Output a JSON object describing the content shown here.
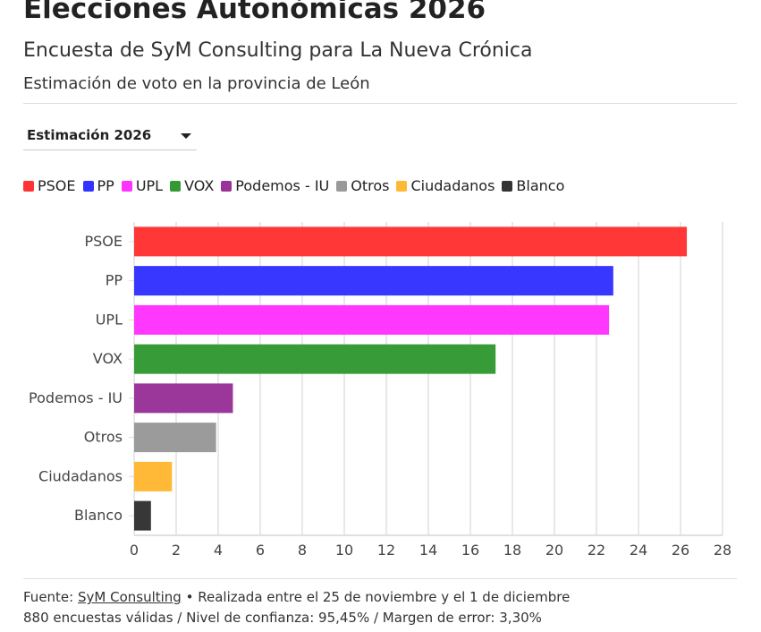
{
  "header": {
    "title": "Elecciones Autonómicas 2026",
    "subtitle": "Encuesta de SyM Consulting para La Nueva Crónica",
    "description": "Estimación de voto en la provincia de León"
  },
  "dropdown": {
    "selected": "Estimación 2026"
  },
  "footer": {
    "source_label": "Fuente:",
    "source_link": "SyM Consulting",
    "line1_rest": " • Realizada entre el 25 de noviembre y el 1 de diciembre",
    "line2": "880 encuestas válidas / Nivel de confianza: 95,45% / Margen de error: 3,30%"
  },
  "chart_data": {
    "type": "bar",
    "orientation": "horizontal",
    "categories": [
      "PSOE",
      "PP",
      "UPL",
      "VOX",
      "Podemos - IU",
      "Otros",
      "Ciudadanos",
      "Blanco"
    ],
    "values": [
      26.3,
      22.8,
      22.6,
      17.2,
      4.7,
      3.9,
      1.8,
      0.8
    ],
    "colors": [
      "#ff3333",
      "#3333ff",
      "#ff33ff",
      "#339933",
      "#993399",
      "#999999",
      "#ffb833",
      "#333333"
    ],
    "xlim": [
      0,
      28
    ],
    "xticks": [
      "0",
      "2",
      "4",
      "6",
      "8",
      "10",
      "12",
      "14",
      "16",
      "18",
      "20",
      "22",
      "24",
      "26",
      "28"
    ],
    "grid": true,
    "legend_position": "top-left"
  }
}
